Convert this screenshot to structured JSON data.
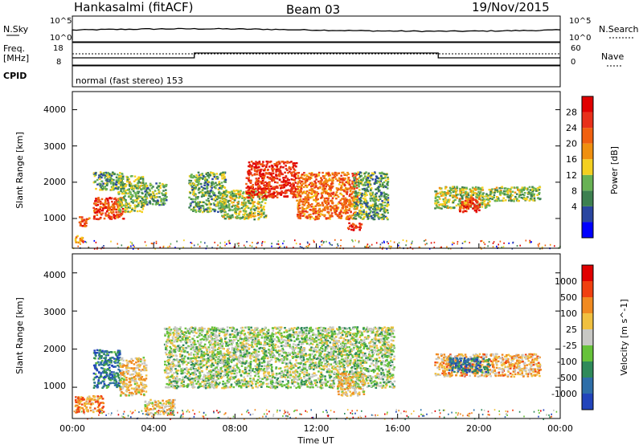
{
  "header": {
    "station": "Hankasalmi (fitACF)",
    "beam": "Beam 03",
    "date": "19/Nov/2015"
  },
  "strip": {
    "nsky_label": "N.Sky",
    "nsearch_label": "N.Search",
    "noise_ticks_left": [
      "10^5",
      "10^0"
    ],
    "noise_ticks_right": [
      "10^5",
      "10^0"
    ],
    "freq_label": "Freq.",
    "freq_unit": "[MHz]",
    "freq_ticks": [
      "18",
      "8"
    ],
    "nave_label": "Nave",
    "nave_ticks": [
      "60",
      "0"
    ],
    "cpid_label": "CPID",
    "cpid_text": "normal (fast stereo) 153"
  },
  "x_axis": {
    "label": "Time UT",
    "ticks": [
      "00:00",
      "04:00",
      "08:00",
      "12:00",
      "16:00",
      "20:00",
      "00:00"
    ]
  },
  "chart_data": [
    {
      "type": "heatmap",
      "name": "power",
      "ylabel": "Slant Range [km]",
      "y_ticks": [
        "4000",
        "3000",
        "2000",
        "1000"
      ],
      "xlim_hours": [
        0,
        24
      ],
      "ylim_km": [
        180,
        4500
      ],
      "colorbar": {
        "label": "Power [dB]",
        "tick_labels": [
          "28",
          "24",
          "20",
          "16",
          "12",
          "8",
          "4"
        ],
        "colors": [
          "#0000ff",
          "#2a46a0",
          "#3d8050",
          "#68b254",
          "#f4d020",
          "#f09010",
          "#f06010",
          "#e8301a",
          "#e00000"
        ]
      },
      "features": [
        {
          "t": [
            0.3,
            0.8
          ],
          "r": [
            800,
            1100
          ],
          "level": 0.75
        },
        {
          "t": [
            0.1,
            0.5
          ],
          "r": [
            350,
            550
          ],
          "level": 0.55
        },
        {
          "t": [
            1.0,
            2.5
          ],
          "r": [
            1000,
            1600
          ],
          "level": 0.8
        },
        {
          "t": [
            1.0,
            2.5
          ],
          "r": [
            1800,
            2300
          ],
          "level": 0.35
        },
        {
          "t": [
            2.2,
            3.5
          ],
          "r": [
            1200,
            2200
          ],
          "level": 0.4
        },
        {
          "t": [
            3.5,
            4.6
          ],
          "r": [
            1400,
            2000
          ],
          "level": 0.35
        },
        {
          "t": [
            5.7,
            7.5
          ],
          "r": [
            1200,
            2300
          ],
          "level": 0.35
        },
        {
          "t": [
            7.3,
            9.5
          ],
          "r": [
            1000,
            1800
          ],
          "level": 0.45
        },
        {
          "t": [
            8.5,
            11.0
          ],
          "r": [
            1600,
            2600
          ],
          "level": 0.85
        },
        {
          "t": [
            11.0,
            14.0
          ],
          "r": [
            1000,
            2300
          ],
          "level": 0.7
        },
        {
          "t": [
            13.8,
            15.5
          ],
          "r": [
            1000,
            2300
          ],
          "level": 0.35
        },
        {
          "t": [
            13.5,
            14.2
          ],
          "r": [
            700,
            900
          ],
          "level": 0.9
        },
        {
          "t": [
            17.8,
            20.5
          ],
          "r": [
            1300,
            1900
          ],
          "level": 0.45
        },
        {
          "t": [
            19.0,
            20.0
          ],
          "r": [
            1200,
            1600
          ],
          "level": 0.8
        },
        {
          "t": [
            20.5,
            23.0
          ],
          "r": [
            1500,
            1900
          ],
          "level": 0.4
        }
      ]
    },
    {
      "type": "heatmap",
      "name": "velocity",
      "ylabel": "Slant Range [km]",
      "y_ticks": [
        "4000",
        "3000",
        "2000",
        "1000"
      ],
      "xlim_hours": [
        0,
        24
      ],
      "ylim_km": [
        180,
        4500
      ],
      "colorbar": {
        "label": "Velocity [m s^-1]",
        "tick_labels": [
          "1000",
          "500",
          "100",
          "25",
          "-25",
          "-100",
          "-500",
          "-1000"
        ],
        "colors": [
          "#2244bb",
          "#2e6ea8",
          "#2f8a5a",
          "#66c23a",
          "#c8c8c4",
          "#f0c040",
          "#f08a20",
          "#f04010",
          "#e00000"
        ]
      },
      "features": [
        {
          "t": [
            1.0,
            2.3
          ],
          "r": [
            1000,
            2000
          ],
          "level": 0.2
        },
        {
          "t": [
            2.3,
            3.6
          ],
          "r": [
            800,
            1800
          ],
          "level": 0.6
        },
        {
          "t": [
            0.1,
            1.5
          ],
          "r": [
            350,
            800
          ],
          "level": 0.7
        },
        {
          "t": [
            3.5,
            5.0
          ],
          "r": [
            300,
            700
          ],
          "level": 0.6
        },
        {
          "t": [
            4.5,
            15.8
          ],
          "r": [
            1000,
            2600
          ],
          "level": 0.45
        },
        {
          "t": [
            13.0,
            14.3
          ],
          "r": [
            800,
            1400
          ],
          "level": 0.6
        },
        {
          "t": [
            17.8,
            23.0
          ],
          "r": [
            1300,
            1900
          ],
          "level": 0.65
        },
        {
          "t": [
            18.5,
            20.5
          ],
          "r": [
            1400,
            1800
          ],
          "level": 0.2
        }
      ]
    }
  ]
}
